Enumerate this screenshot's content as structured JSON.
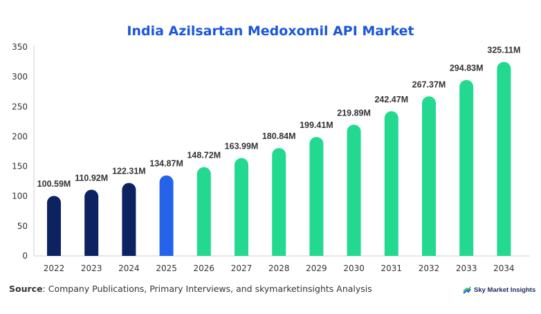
{
  "chart_data": {
    "type": "bar",
    "title": "India Azilsartan Medoxomil API Market",
    "categories": [
      "2022",
      "2023",
      "2024",
      "2025",
      "2026",
      "2027",
      "2028",
      "2029",
      "2030",
      "2031",
      "2032",
      "2033",
      "2034"
    ],
    "values": [
      100.59,
      110.92,
      122.31,
      134.87,
      148.72,
      163.99,
      180.84,
      199.41,
      219.89,
      242.47,
      267.37,
      294.83,
      325.11
    ],
    "labels": [
      "100.59M",
      "110.92M",
      "122.31M",
      "134.87M",
      "148.72M",
      "163.99M",
      "180.84M",
      "199.41M",
      "219.89M",
      "242.47M",
      "267.37M",
      "294.83M",
      "325.11M"
    ],
    "yticks": [
      0,
      50,
      100,
      150,
      200,
      250,
      300,
      350
    ],
    "ylim": [
      0,
      350
    ],
    "xlabel": "",
    "ylabel": "",
    "grid": false,
    "legend": "none",
    "bar_colors": [
      "#0d2260",
      "#0d2260",
      "#0d2260",
      "#2563eb",
      "#22d98f",
      "#22d98f",
      "#22d98f",
      "#22d98f",
      "#22d98f",
      "#22d98f",
      "#22d98f",
      "#22d98f",
      "#22d98f"
    ],
    "title_color": "#1a56db"
  },
  "footer": {
    "source_label": "Source",
    "source_text": ": Company Publications, Primary Interviews, and skymarketinsights Analysis",
    "brand": "Sky Market Insights"
  }
}
